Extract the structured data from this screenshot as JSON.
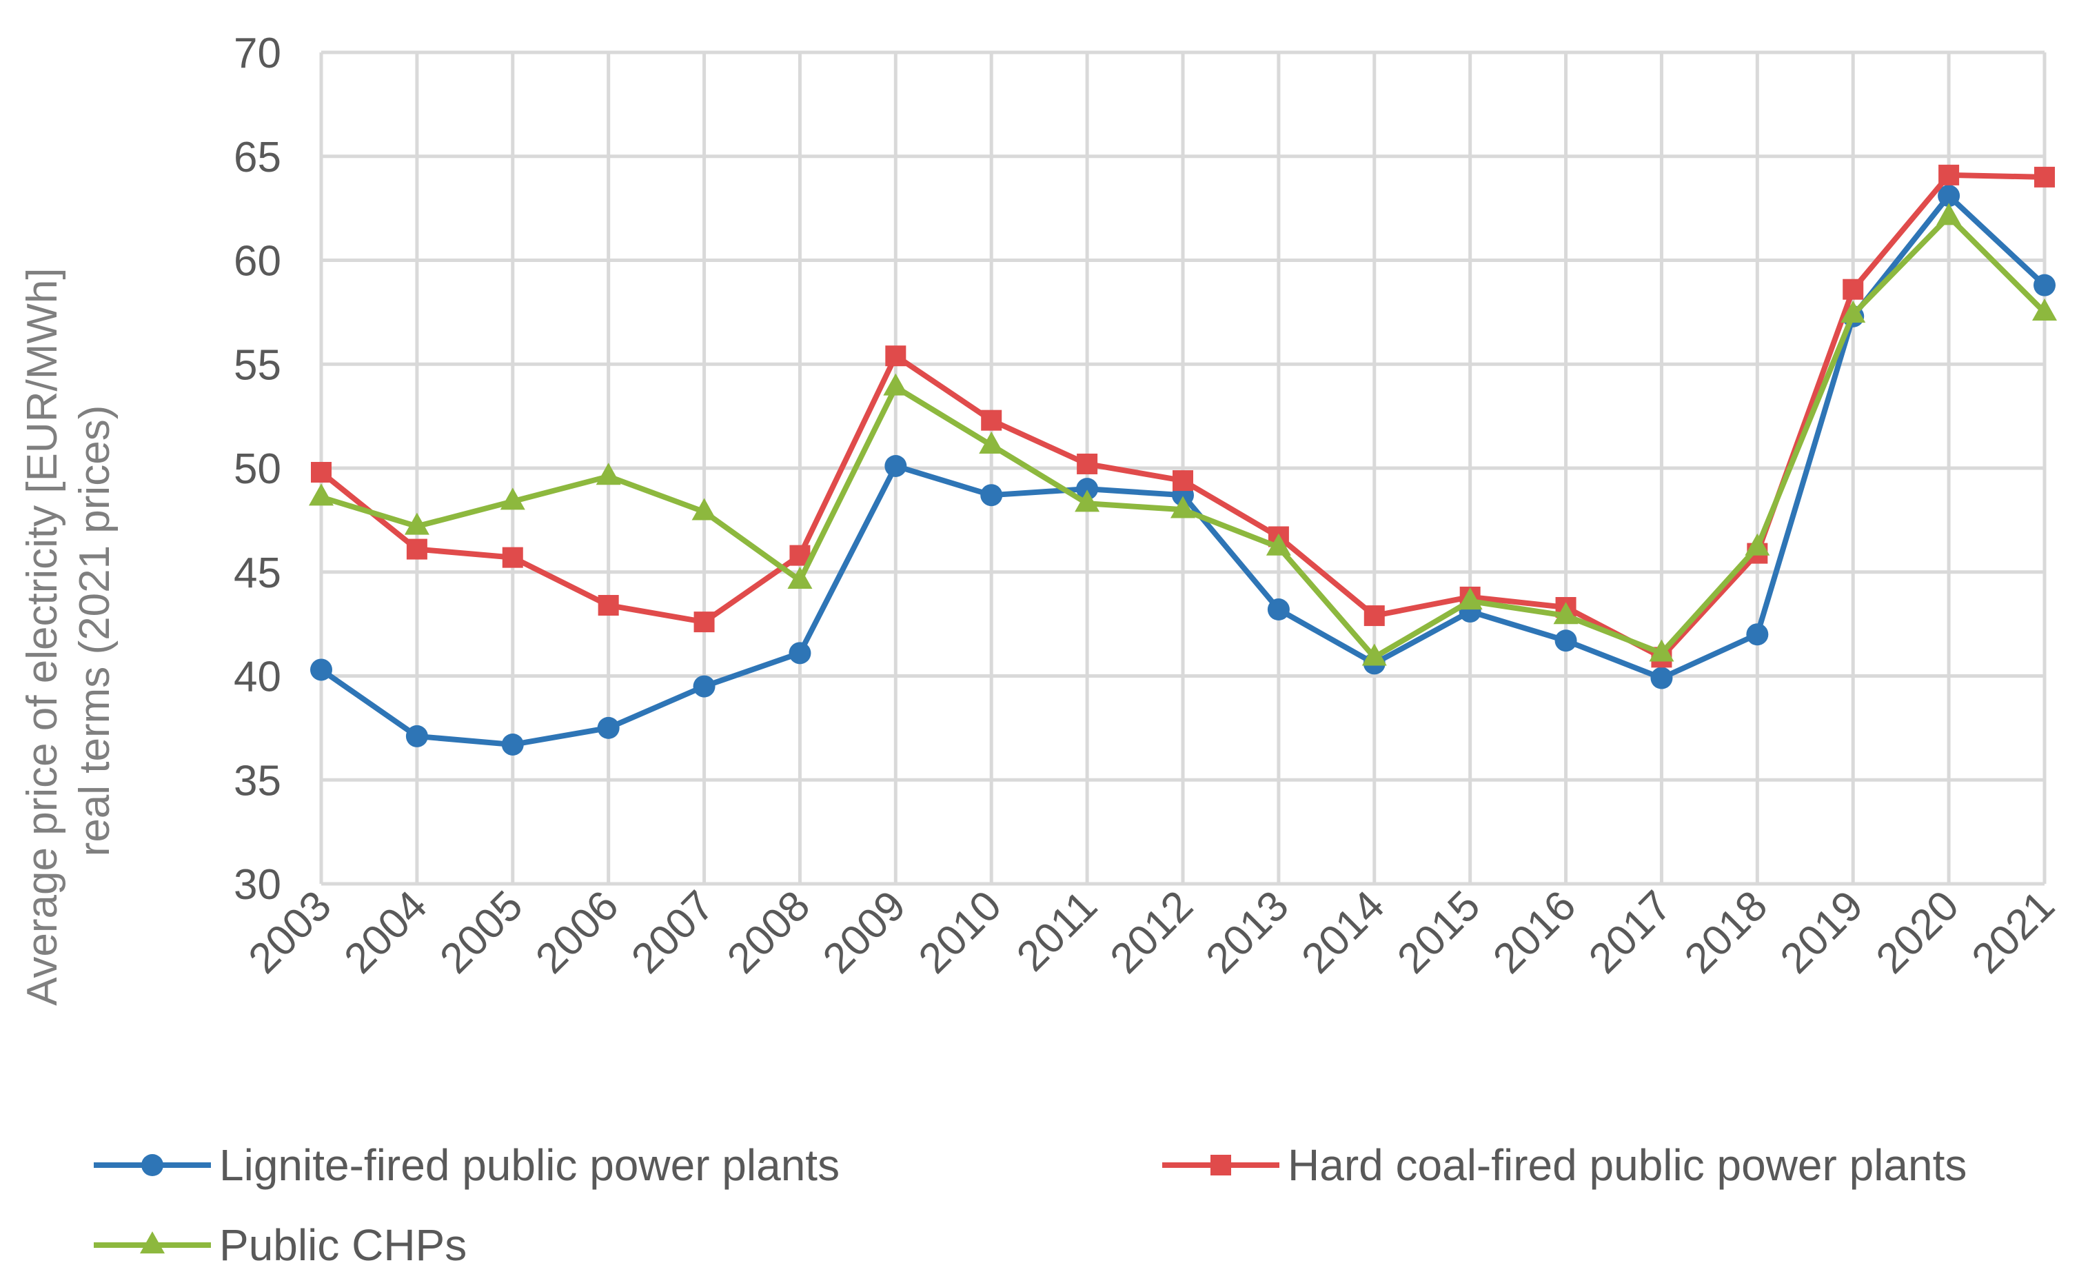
{
  "chart_data": {
    "type": "line",
    "title": "",
    "ylabel_lines": [
      "Average price of electricity [EUR/MWh]",
      "real terms (2021 prices)"
    ],
    "xlabel": "",
    "ylim": [
      30,
      70
    ],
    "ytick_step": 5,
    "yticks": [
      "30",
      "35",
      "40",
      "45",
      "50",
      "55",
      "60",
      "65",
      "70"
    ],
    "grid": true,
    "legend_position": "bottom",
    "categories": [
      "2003",
      "2004",
      "2005",
      "2006",
      "2007",
      "2008",
      "2009",
      "2010",
      "2011",
      "2012",
      "2013",
      "2014",
      "2015",
      "2016",
      "2017",
      "2018",
      "2019",
      "2020",
      "2021"
    ],
    "series": [
      {
        "name": "Lignite-fired public power plants",
        "color": "#2E75B6",
        "marker": "circle",
        "values": [
          40.3,
          37.1,
          36.7,
          37.5,
          39.5,
          41.1,
          50.1,
          48.7,
          49.0,
          48.7,
          43.2,
          40.6,
          43.1,
          41.7,
          39.9,
          42.0,
          57.3,
          63.1,
          58.8
        ]
      },
      {
        "name": "Hard coal-fired public power plants",
        "color": "#E04B4B",
        "marker": "square",
        "values": [
          49.8,
          46.1,
          45.7,
          43.4,
          42.6,
          45.8,
          55.4,
          52.3,
          50.2,
          49.4,
          46.7,
          42.9,
          43.8,
          43.3,
          40.9,
          45.9,
          58.6,
          64.1,
          64.0
        ]
      },
      {
        "name": "Public CHPs",
        "color": "#8DB83E",
        "marker": "triangle",
        "values": [
          48.6,
          47.2,
          48.4,
          49.6,
          47.9,
          44.6,
          53.9,
          51.1,
          48.3,
          48.0,
          46.2,
          40.9,
          43.6,
          42.9,
          41.1,
          46.2,
          57.4,
          62.1,
          57.5
        ]
      }
    ]
  }
}
